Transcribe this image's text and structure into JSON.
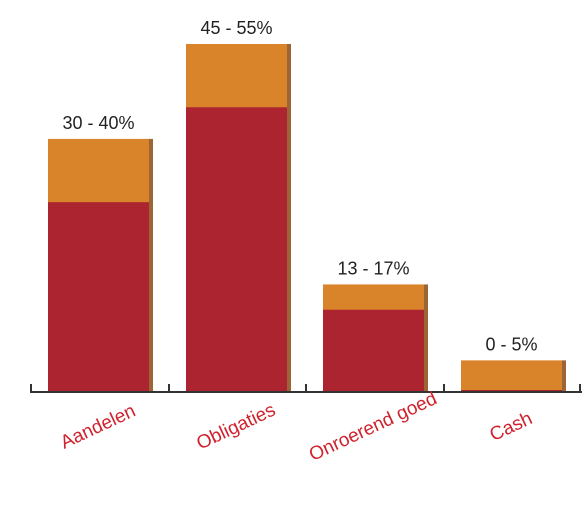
{
  "chart_data": {
    "type": "bar",
    "stacked": true,
    "categories": [
      "Aandelen",
      "Obligaties",
      "Onroerend goed",
      "Cash"
    ],
    "ranges": [
      {
        "min": 30,
        "max": 40
      },
      {
        "min": 45,
        "max": 55
      },
      {
        "min": 13,
        "max": 17
      },
      {
        "min": 0,
        "max": 5
      }
    ],
    "range_labels": [
      "30 - 40%",
      "45 - 55%",
      "13 - 17%",
      "0 - 5%"
    ],
    "unit": "%",
    "ylim": [
      0,
      60
    ],
    "grid": false,
    "legend": "none"
  },
  "colors": {
    "min_segment": "#ab2430",
    "range_segment": "#d9832a",
    "bar_shadow": "#8a4a12",
    "axis": "#333333",
    "category_text": "#d0222e"
  }
}
